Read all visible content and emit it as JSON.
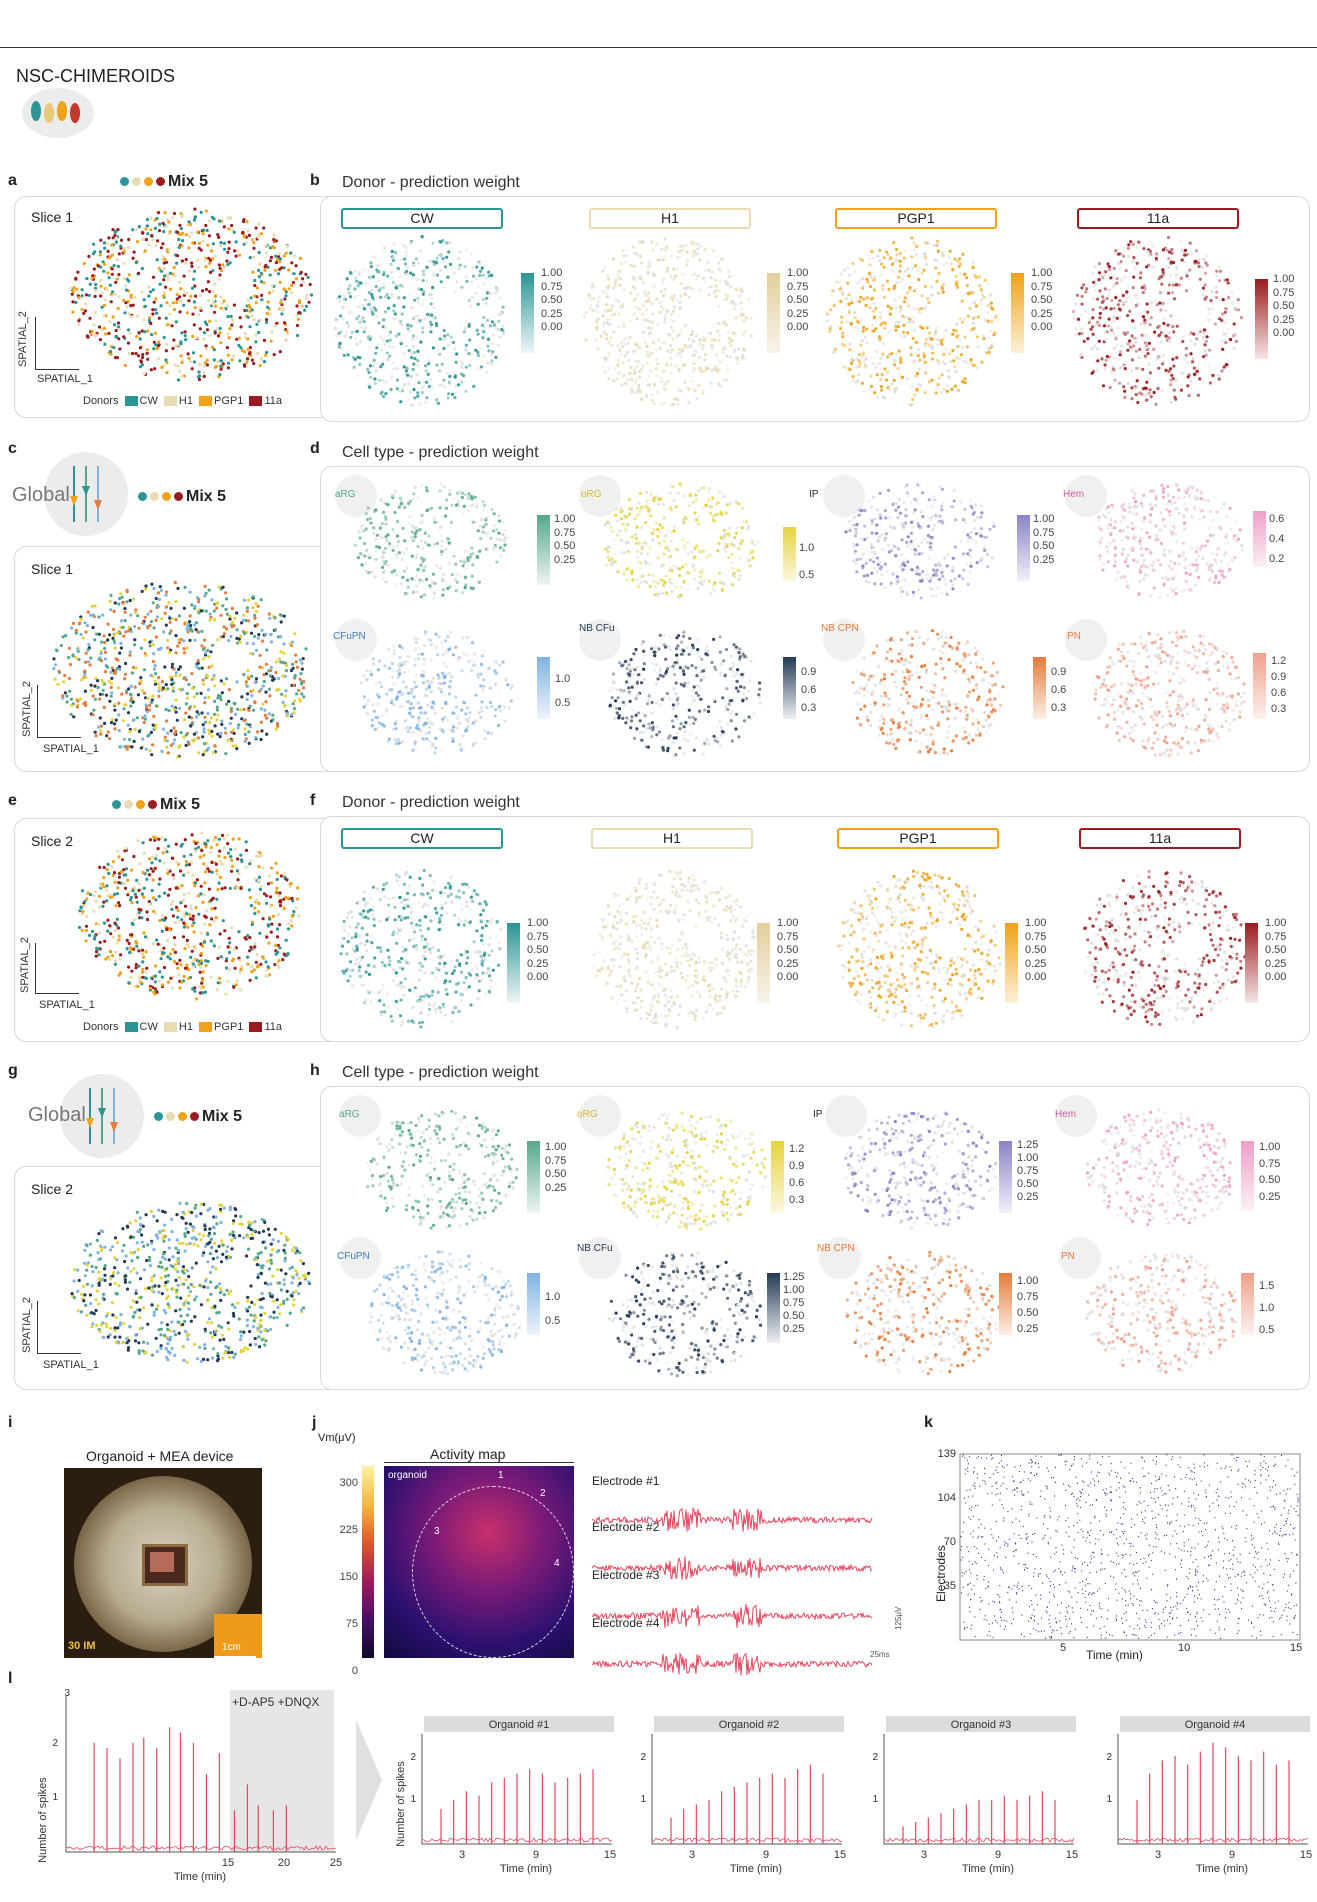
{
  "header": {
    "title": "NSC-CHIMEROIDS"
  },
  "panel_labels": {
    "a": "a",
    "b": "b",
    "c": "c",
    "d": "d",
    "e": "e",
    "f": "f",
    "g": "g",
    "h": "h",
    "i": "i",
    "j": "j",
    "k": "k",
    "l": "l"
  },
  "mix_label": "Mix 5",
  "global_label": "Global",
  "slices": {
    "s1": "Slice 1",
    "s2": "Slice 2"
  },
  "axes": {
    "x": "SPATIAL_1",
    "y": "SPATIAL_2"
  },
  "donor_legend": {
    "title": "Donors",
    "items": [
      "CW",
      "H1",
      "PGP1",
      "11a"
    ]
  },
  "colors": {
    "CW": "#2a9594",
    "H1": "#e9dcb2",
    "PGP1": "#f0a218",
    "11a": "#9b1b1e",
    "aRG": "#55a88a",
    "oRG": "#e6d33b",
    "IP": "#8a84c8",
    "Hem": "#ef9fc6",
    "CFuPN": "#7fb3e3",
    "NBCFu": "#243a55",
    "NBCPN": "#e57c3b",
    "PN": "#f0a08a",
    "trace": "#e6465e",
    "raster": "#2c3a8a"
  },
  "donor_section": {
    "title": "Donor - prediction weight",
    "donors": [
      "CW",
      "H1",
      "PGP1",
      "11a"
    ],
    "ticks": [
      "1.00",
      "0.75",
      "0.50",
      "0.25",
      "0.00"
    ]
  },
  "celltype_section": {
    "title": "Cell type - prediction weight",
    "types_top": [
      "aRG",
      "oRG",
      "IP",
      "Hem"
    ],
    "types_bottom": [
      "CFuPN",
      "NB CFu",
      "NB CPN",
      "PN"
    ],
    "ticks_slice1": {
      "aRG": [
        "1.00",
        "0.75",
        "0.50",
        "0.25"
      ],
      "oRG": [
        "1.0",
        "0.5"
      ],
      "IP": [
        "1.00",
        "0.75",
        "0.50",
        "0.25"
      ],
      "Hem": [
        "0.6",
        "0.4",
        "0.2"
      ],
      "CFuPN": [
        "1.0",
        "0.5"
      ],
      "NBCFu": [
        "0.9",
        "0.6",
        "0.3"
      ],
      "NBCPN": [
        "0.9",
        "0.6",
        "0.3"
      ],
      "PN": [
        "1.2",
        "0.9",
        "0.6",
        "0.3"
      ]
    },
    "ticks_slice2": {
      "aRG": [
        "1.00",
        "0.75",
        "0.50",
        "0.25"
      ],
      "oRG": [
        "1.2",
        "0.9",
        "0.6",
        "0.3"
      ],
      "IP": [
        "1.25",
        "1.00",
        "0.75",
        "0.50",
        "0.25"
      ],
      "Hem": [
        "1.00",
        "0.75",
        "0.50",
        "0.25"
      ],
      "CFuPN": [
        "1.0",
        "0.5"
      ],
      "NBCFu": [
        "1.25",
        "1.00",
        "0.75",
        "0.50",
        "0.25"
      ],
      "NBCPN": [
        "1.00",
        "0.75",
        "0.50",
        "0.25"
      ],
      "PN": [
        "1.5",
        "1.0",
        "0.5"
      ]
    }
  },
  "panel_i": {
    "title": "Organoid + MEA device",
    "corner_text": "30 IM",
    "scale_text": "1cm"
  },
  "panel_j": {
    "cbar_label": "Vm(μV)",
    "cbar_ticks": [
      "300",
      "225",
      "150",
      "75",
      "0"
    ],
    "map_title": "Activity map",
    "organoid_label": "organoid",
    "arrow_labels": [
      "1",
      "2",
      "3",
      "4"
    ],
    "electrodes": [
      "Electrode #1",
      "Electrode #2",
      "Electrode #3",
      "Electrode #4"
    ],
    "scale_time": "25ms",
    "scale_amp": "125μV"
  },
  "panel_k": {
    "ylabel": "Electrodes",
    "xlabel": "Time (min)",
    "yticks": [
      "139",
      "104",
      "70",
      "35"
    ],
    "xticks": [
      "5",
      "10",
      "15"
    ]
  },
  "panel_l": {
    "treatment": "+D-AP5 +DNQX",
    "ylabel": "Number of spikes",
    "xlabel": "Time (min)",
    "main_yticks": [
      "3",
      "2",
      "1"
    ],
    "main_xticks": [
      "15",
      "20",
      "25"
    ],
    "organoids": [
      "Organoid #1",
      "Organoid #2",
      "Organoid #3",
      "Organoid #4"
    ],
    "org_yticks": [
      "2",
      "1"
    ],
    "org_xticks": [
      "3",
      "9",
      "15"
    ]
  },
  "chart_data": [
    {
      "type": "bar",
      "title": "",
      "xlabel": "Time (min)",
      "ylabel": "Number of spikes",
      "ylim": [
        0,
        3
      ],
      "x": [
        2.6,
        3.8,
        5.0,
        6.2,
        7.2,
        8.4,
        9.6,
        10.6,
        11.8,
        13.0,
        14.2,
        15.6,
        16.8,
        17.8,
        19.2,
        20.4
      ],
      "values": [
        2.1,
        2.0,
        1.8,
        2.1,
        2.2,
        2.0,
        2.4,
        2.3,
        2.1,
        1.5,
        1.9,
        0.8,
        1.3,
        0.9,
        0.8,
        0.9
      ]
    },
    {
      "type": "bar",
      "title": "Organoid #1",
      "xlabel": "Time (min)",
      "ylabel": "Number of spikes",
      "ylim": [
        0,
        2.5
      ],
      "x": [
        1.5,
        2.5,
        3.5,
        4.5,
        5.5,
        6.5,
        7.5,
        8.5,
        9.5,
        10.5,
        11.5,
        12.5,
        13.5
      ],
      "values": [
        0.8,
        1.0,
        1.2,
        1.1,
        1.4,
        1.5,
        1.6,
        1.7,
        1.6,
        1.4,
        1.5,
        1.6,
        1.7
      ]
    },
    {
      "type": "bar",
      "title": "Organoid #2",
      "xlabel": "Time (min)",
      "ylim": [
        0,
        2.5
      ],
      "x": [
        1.5,
        2.5,
        3.5,
        4.5,
        5.5,
        6.5,
        7.5,
        8.5,
        9.5,
        10.5,
        11.5,
        12.5,
        13.5
      ],
      "values": [
        0.6,
        0.8,
        0.9,
        1.0,
        1.2,
        1.3,
        1.4,
        1.5,
        1.6,
        1.5,
        1.7,
        1.8,
        1.6
      ]
    },
    {
      "type": "bar",
      "title": "Organoid #3",
      "xlabel": "Time (min)",
      "ylim": [
        0,
        2.5
      ],
      "x": [
        1.5,
        2.5,
        3.5,
        4.5,
        5.5,
        6.5,
        7.5,
        8.5,
        9.5,
        10.5,
        11.5,
        12.5,
        13.5
      ],
      "values": [
        0.4,
        0.5,
        0.6,
        0.7,
        0.8,
        0.9,
        1.0,
        1.0,
        1.1,
        1.0,
        1.1,
        1.2,
        1.0
      ]
    },
    {
      "type": "bar",
      "title": "Organoid #4",
      "xlabel": "Time (min)",
      "ylim": [
        0,
        2.5
      ],
      "x": [
        1.5,
        2.5,
        3.5,
        4.5,
        5.5,
        6.5,
        7.5,
        8.5,
        9.5,
        10.5,
        11.5,
        12.5,
        13.5
      ],
      "values": [
        1.0,
        1.6,
        1.9,
        2.0,
        1.8,
        2.1,
        2.3,
        2.2,
        2.0,
        1.9,
        2.1,
        1.8,
        1.9
      ]
    }
  ]
}
